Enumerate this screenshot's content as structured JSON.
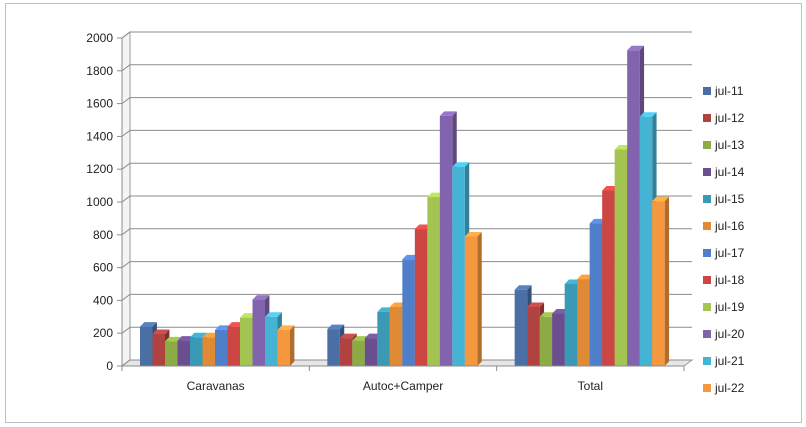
{
  "chart_data": {
    "type": "bar",
    "style": "3d-clustered-column",
    "categories": [
      "Caravanas",
      "Autoc+Camper",
      "Total"
    ],
    "ylim": [
      0,
      2000
    ],
    "yticks": [
      "0",
      "200",
      "400",
      "600",
      "800",
      "1000",
      "1200",
      "1400",
      "1600",
      "1800",
      "2000"
    ],
    "grid": true,
    "legend_position": "right",
    "series": [
      {
        "name": "jul-11",
        "color": "#4a6fa5",
        "values": [
          240,
          225,
          465
        ]
      },
      {
        "name": "jul-12",
        "color": "#b04240",
        "values": [
          195,
          170,
          360
        ]
      },
      {
        "name": "jul-13",
        "color": "#8cab45",
        "values": [
          150,
          155,
          300
        ]
      },
      {
        "name": "jul-14",
        "color": "#6b4e8f",
        "values": [
          155,
          170,
          320
        ]
      },
      {
        "name": "jul-15",
        "color": "#3a99b5",
        "values": [
          175,
          330,
          500
        ]
      },
      {
        "name": "jul-16",
        "color": "#e08a35",
        "values": [
          175,
          360,
          530
        ]
      },
      {
        "name": "jul-17",
        "color": "#4f7fc8",
        "values": [
          220,
          650,
          870
        ]
      },
      {
        "name": "jul-18",
        "color": "#cc4744",
        "values": [
          240,
          835,
          1070
        ]
      },
      {
        "name": "jul-19",
        "color": "#a3c451",
        "values": [
          295,
          1030,
          1320
        ]
      },
      {
        "name": "jul-20",
        "color": "#8264ae",
        "values": [
          405,
          1525,
          1925
        ]
      },
      {
        "name": "jul-21",
        "color": "#45b3d3",
        "values": [
          300,
          1215,
          1520
        ]
      },
      {
        "name": "jul-22",
        "color": "#f5973f",
        "values": [
          220,
          790,
          1005
        ]
      }
    ]
  }
}
